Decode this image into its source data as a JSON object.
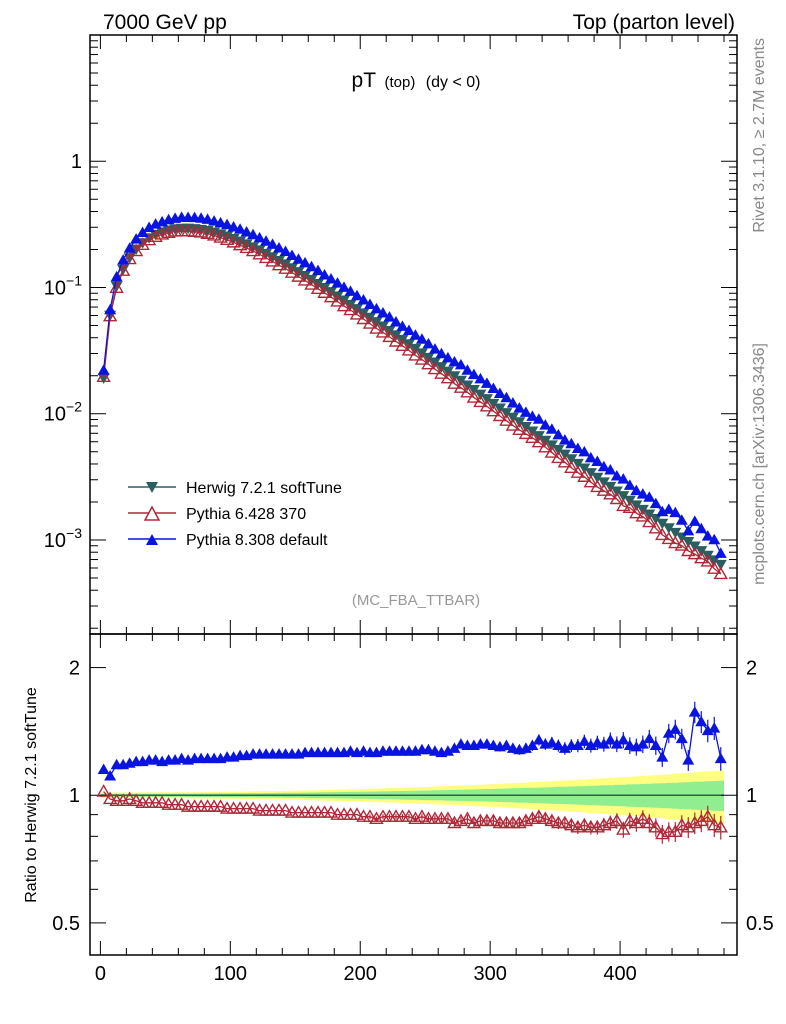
{
  "header": {
    "left": "7000 GeV pp",
    "right": "Top (parton level)"
  },
  "side_labels": {
    "rivet": "Rivet 3.1.10, ≥ 2.7M events",
    "mcplots": "mcplots.cern.ch [arXiv:1306.3436]"
  },
  "chart_data": [
    {
      "type": "line",
      "title_main": "pT",
      "title_sub": "(top)",
      "title_suffix": "(dy < 0)",
      "analysis_tag": "(MC_FBA_TTBAR)",
      "yscale": "log",
      "xlim": [
        -8,
        490
      ],
      "ylim": [
        0.00018,
        10
      ],
      "y_ticks": [
        {
          "v": 0.001,
          "base": "10",
          "exp": "−3"
        },
        {
          "v": 0.01,
          "base": "10",
          "exp": "−2"
        },
        {
          "v": 0.1,
          "base": "10",
          "exp": "−1"
        },
        {
          "v": 1,
          "base": "1",
          "exp": ""
        }
      ],
      "legend": {
        "position": "lower-left"
      },
      "x": [
        2.5,
        7.5,
        12.5,
        17.5,
        22.5,
        27.5,
        32.5,
        37.5,
        42.5,
        47.5,
        52.5,
        57.5,
        62.5,
        67.5,
        72.5,
        77.5,
        82.5,
        87.5,
        92.5,
        97.5,
        102.5,
        107.5,
        112.5,
        117.5,
        122.5,
        127.5,
        132.5,
        137.5,
        142.5,
        147.5,
        152.5,
        157.5,
        162.5,
        167.5,
        172.5,
        177.5,
        182.5,
        187.5,
        192.5,
        197.5,
        202.5,
        207.5,
        212.5,
        217.5,
        222.5,
        227.5,
        232.5,
        237.5,
        242.5,
        247.5,
        252.5,
        257.5,
        262.5,
        267.5,
        272.5,
        277.5,
        282.5,
        287.5,
        292.5,
        297.5,
        302.5,
        307.5,
        312.5,
        317.5,
        322.5,
        327.5,
        332.5,
        337.5,
        342.5,
        347.5,
        352.5,
        357.5,
        362.5,
        367.5,
        372.5,
        377.5,
        382.5,
        387.5,
        392.5,
        397.5,
        402.5,
        407.5,
        412.5,
        417.5,
        422.5,
        427.5,
        432.5,
        437.5,
        442.5,
        447.5,
        452.5,
        457.5,
        462.5,
        467.5,
        472.5,
        477.5
      ],
      "series": [
        {
          "name": "Herwig 7.2.1 softTune",
          "color": "#2b5f5f",
          "marker": "triangle-down-filled",
          "values": [
            0.0192,
            0.0603,
            0.1027,
            0.1394,
            0.1721,
            0.2011,
            0.2263,
            0.2469,
            0.2633,
            0.2754,
            0.2846,
            0.291,
            0.2943,
            0.2951,
            0.2929,
            0.2889,
            0.2827,
            0.2746,
            0.2656,
            0.2555,
            0.2445,
            0.2331,
            0.2218,
            0.2098,
            0.1984,
            0.1865,
            0.1751,
            0.1641,
            0.1537,
            0.1435,
            0.1337,
            0.1244,
            0.1159,
            0.1076,
            0.09998,
            0.09267,
            0.08587,
            0.07953,
            0.07354,
            0.06807,
            0.06292,
            0.05811,
            0.05363,
            0.04954,
            0.04568,
            0.04209,
            0.03884,
            0.0358,
            0.03295,
            0.03033,
            0.02795,
            0.02569,
            0.02364,
            0.02177,
            0.02,
            0.0184,
            0.0169,
            0.01556,
            0.0143,
            0.01316,
            0.01208,
            0.01111,
            0.01021,
            0.009386,
            0.008631,
            0.007932,
            0.007299,
            0.006703,
            0.006163,
            0.005665,
            0.005206,
            0.004788,
            0.0044,
            0.004044,
            0.003715,
            0.003419,
            0.003142,
            0.002889,
            0.002658,
            0.002441,
            0.002245,
            0.002066,
            0.001897,
            0.001746,
            0.001607,
            0.001478,
            0.001357,
            0.00125,
            0.001149,
            0.001057,
            0.0009733,
            0.0008953,
            0.0008228,
            0.0007567,
            0.0006962,
            0.0006406
          ]
        },
        {
          "name": "Pythia 6.428 370",
          "color": "#b02838",
          "marker": "triangle-up-open",
          "values": [
            0.0196,
            0.0592,
            0.0995,
            0.1359,
            0.168,
            0.1942,
            0.2178,
            0.2369,
            0.2522,
            0.2633,
            0.2711,
            0.2779,
            0.2794,
            0.2787,
            0.2763,
            0.2728,
            0.2661,
            0.2582,
            0.2486,
            0.2387,
            0.2277,
            0.2166,
            0.2056,
            0.1944,
            0.1832,
            0.1715,
            0.1608,
            0.1502,
            0.1408,
            0.1311,
            0.1219,
            0.1137,
            0.1054,
            0.09761,
            0.09084,
            0.08388,
            0.0775,
            0.0712,
            0.0663,
            0.06121,
            0.0563,
            0.0518,
            0.0473,
            0.04407,
            0.04063,
            0.03734,
            0.03451,
            0.03171,
            0.02896,
            0.02687,
            0.0247,
            0.02258,
            0.02076,
            0.01911,
            0.01729,
            0.01607,
            0.01479,
            0.01342,
            0.0124,
            0.01144,
            0.01047,
            0.009596,
            0.008809,
            0.008066,
            0.007461,
            0.006927,
            0.006448,
            0.00595,
            0.005417,
            0.004926,
            0.004467,
            0.004125,
            0.003731,
            0.003415,
            0.003168,
            0.00287,
            0.002631,
            0.002456,
            0.002299,
            0.002112,
            0.001861,
            0.001797,
            0.00163,
            0.001536,
            0.001387,
            0.001237,
            0.001097,
            0.001019,
            0.000946,
            0.0009024,
            0.0008178,
            0.0007728,
            0.0007168,
            0.0006764,
            0.0005926,
            0.0005379
          ]
        },
        {
          "name": "Pythia 8.308 default",
          "color": "#0a14e0",
          "marker": "triangle-up-filled",
          "values": [
            0.0221,
            0.0667,
            0.1213,
            0.1647,
            0.2045,
            0.2418,
            0.2724,
            0.2987,
            0.3177,
            0.3308,
            0.3444,
            0.3529,
            0.3591,
            0.3584,
            0.3574,
            0.3537,
            0.346,
            0.3357,
            0.3251,
            0.3146,
            0.3016,
            0.2892,
            0.2749,
            0.2618,
            0.247,
            0.2324,
            0.2193,
            0.2057,
            0.1928,
            0.1794,
            0.1673,
            0.1567,
            0.1459,
            0.1359,
            0.1256,
            0.1168,
            0.1084,
            0.1003,
            0.0932,
            0.08597,
            0.07967,
            0.07339,
            0.06771,
            0.06284,
            0.0582,
            0.05329,
            0.04922,
            0.0456,
            0.04184,
            0.03891,
            0.03575,
            0.03252,
            0.02988,
            0.02771,
            0.02577,
            0.02438,
            0.0221,
            0.02041,
            0.01889,
            0.01741,
            0.01586,
            0.01448,
            0.01339,
            0.01214,
            0.01108,
            0.01026,
            0.009538,
            0.009047,
            0.00813,
            0.007535,
            0.006807,
            0.006185,
            0.005784,
            0.005305,
            0.004988,
            0.004468,
            0.004184,
            0.003806,
            0.003584,
            0.003215,
            0.003035,
            0.002709,
            0.002461,
            0.00231,
            0.002179,
            0.001942,
            0.001675,
            0.001746,
            0.001646,
            0.001433,
            0.00118,
            0.001405,
            0.001226,
            0.001074,
            0.001004,
            0.000784
          ]
        }
      ]
    },
    {
      "type": "line",
      "ylabel": "Ratio to Herwig 7.2.1 softTune",
      "yscale": "log",
      "ylim": [
        0.42,
        2.4
      ],
      "x_ticks": [
        0,
        100,
        200,
        300,
        400
      ],
      "y_ticks": [
        0.5,
        1,
        2
      ],
      "reference": 1,
      "band_colors": {
        "inner": "#90ee90",
        "outer": "#ffff80"
      },
      "series": [
        {
          "name": "Pythia 6.428 370",
          "color": "#b02838",
          "values": [
            1.02,
            0.98,
            0.97,
            0.97,
            0.98,
            0.97,
            0.96,
            0.96,
            0.96,
            0.96,
            0.95,
            0.95,
            0.95,
            0.94,
            0.94,
            0.94,
            0.94,
            0.94,
            0.94,
            0.93,
            0.93,
            0.93,
            0.93,
            0.93,
            0.92,
            0.92,
            0.92,
            0.92,
            0.92,
            0.91,
            0.91,
            0.91,
            0.91,
            0.91,
            0.91,
            0.91,
            0.9,
            0.9,
            0.9,
            0.9,
            0.89,
            0.89,
            0.88,
            0.89,
            0.89,
            0.89,
            0.89,
            0.89,
            0.88,
            0.89,
            0.88,
            0.88,
            0.88,
            0.88,
            0.86,
            0.87,
            0.88,
            0.86,
            0.87,
            0.87,
            0.87,
            0.86,
            0.86,
            0.86,
            0.86,
            0.87,
            0.88,
            0.89,
            0.88,
            0.87,
            0.86,
            0.86,
            0.85,
            0.84,
            0.85,
            0.84,
            0.84,
            0.85,
            0.86,
            0.87,
            0.83,
            0.87,
            0.86,
            0.88,
            0.86,
            0.84,
            0.81,
            0.82,
            0.82,
            0.85,
            0.84,
            0.86,
            0.87,
            0.89,
            0.85,
            0.84
          ]
        },
        {
          "name": "Pythia 8.308 default",
          "color": "#0a14e0",
          "values": [
            1.15,
            1.11,
            1.18,
            1.18,
            1.19,
            1.2,
            1.2,
            1.21,
            1.21,
            1.2,
            1.21,
            1.21,
            1.22,
            1.21,
            1.22,
            1.22,
            1.22,
            1.22,
            1.22,
            1.23,
            1.23,
            1.24,
            1.24,
            1.25,
            1.25,
            1.25,
            1.25,
            1.25,
            1.25,
            1.25,
            1.25,
            1.26,
            1.26,
            1.26,
            1.26,
            1.26,
            1.26,
            1.26,
            1.27,
            1.26,
            1.27,
            1.26,
            1.26,
            1.27,
            1.27,
            1.27,
            1.27,
            1.27,
            1.27,
            1.28,
            1.28,
            1.27,
            1.26,
            1.27,
            1.29,
            1.32,
            1.31,
            1.31,
            1.32,
            1.32,
            1.31,
            1.3,
            1.31,
            1.29,
            1.28,
            1.29,
            1.31,
            1.35,
            1.32,
            1.33,
            1.31,
            1.29,
            1.31,
            1.31,
            1.34,
            1.31,
            1.33,
            1.32,
            1.35,
            1.32,
            1.35,
            1.31,
            1.3,
            1.32,
            1.36,
            1.31,
            1.23,
            1.4,
            1.43,
            1.36,
            1.21,
            1.57,
            1.49,
            1.42,
            1.44,
            1.22
          ]
        }
      ]
    }
  ]
}
